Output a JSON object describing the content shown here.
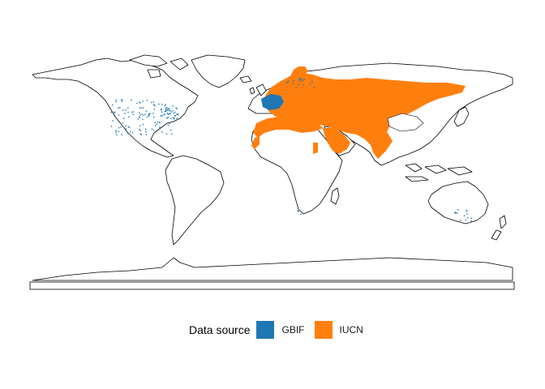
{
  "map": {
    "projection": "equirectangular world map",
    "base_layer": "world coastlines and country borders",
    "ranges": [
      {
        "source": "IUCN",
        "region": "Europe, Russia, Central Asia, Middle East, North Africa, South Asia"
      },
      {
        "source": "GBIF",
        "region": "France and western Europe, scattered records in eastern United States and Australia"
      }
    ]
  },
  "legend": {
    "title": "Data source",
    "items": [
      {
        "label": "GBIF",
        "color": "#1f77b4"
      },
      {
        "label": "IUCN",
        "color": "#ff7f0e"
      }
    ]
  }
}
